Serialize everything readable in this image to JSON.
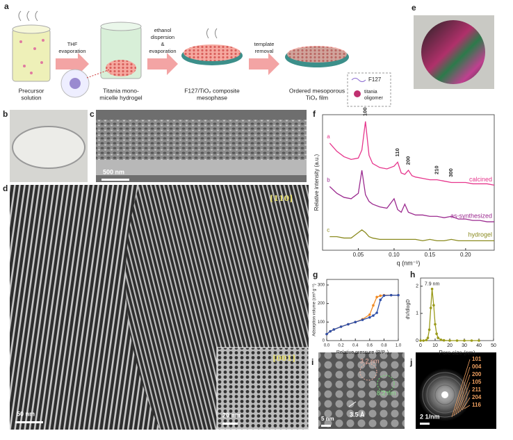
{
  "scheme": {
    "label": "a",
    "steps": [
      {
        "lines": [
          "Precursor",
          "solution"
        ]
      },
      {
        "lines": [
          "Titania mono-",
          "micelle hydrogel"
        ]
      },
      {
        "lines": [
          "F127/TiO₂ composite",
          "mesophase"
        ]
      },
      {
        "lines": [
          "Ordered mesoporous",
          "TiO₂ film"
        ]
      }
    ],
    "arrows": [
      {
        "lines": [
          "THF",
          "evaporation"
        ]
      },
      {
        "lines": [
          "ethanol",
          "dispersion",
          "&",
          "evaporation"
        ]
      },
      {
        "lines": [
          "template",
          "removal"
        ]
      }
    ],
    "legend": [
      "F127",
      "titania",
      "oligomer"
    ]
  },
  "panels": {
    "b": {
      "label": "b"
    },
    "c": {
      "label": "c",
      "scale": "500 nm"
    },
    "d": {
      "label": "d",
      "zone": "[110]",
      "scale": "50 nm",
      "inset_zone": "[001]",
      "inset_scale": "20 nm"
    },
    "e": {
      "label": "e"
    },
    "f": {
      "label": "f"
    },
    "g": {
      "label": "g"
    },
    "h": {
      "label": "h"
    },
    "i": {
      "label": "i",
      "annotations": [
        "3.2 nm",
        "8.2 nm",
        "3.5 Å"
      ],
      "scale": "5 nm"
    },
    "j": {
      "label": "j",
      "rings": [
        "101",
        "004",
        "200",
        "105",
        "211",
        "204",
        "116"
      ],
      "scale": "2 1/nm"
    }
  },
  "chart_data": [
    {
      "type": "line",
      "x_label": "q (nm⁻¹)",
      "y_label": "Relative intensity (a.u.)",
      "x": [
        0.01,
        0.02,
        0.03,
        0.04,
        0.05,
        0.055,
        0.06,
        0.065,
        0.07,
        0.08,
        0.09,
        0.1,
        0.105,
        0.11,
        0.115,
        0.12,
        0.125,
        0.13,
        0.14,
        0.15,
        0.16,
        0.17,
        0.18,
        0.19,
        0.2,
        0.21,
        0.22,
        0.23,
        0.24
      ],
      "series": [
        {
          "name": "calcined",
          "tag": "a",
          "color": "#e6358c",
          "values": [
            7.9,
            7.3,
            6.9,
            6.7,
            6.8,
            7.4,
            9.5,
            7.0,
            6.4,
            6.1,
            6.0,
            6.2,
            6.5,
            5.7,
            5.6,
            5.9,
            5.5,
            5.4,
            5.3,
            5.2,
            5.2,
            5.1,
            5.0,
            5.0,
            5.0,
            4.9,
            4.9,
            4.9,
            4.8
          ]
        },
        {
          "name": "as-synthesized",
          "tag": "b",
          "color": "#9b2a8f",
          "values": [
            4.7,
            4.2,
            3.9,
            3.8,
            4.2,
            5.9,
            4.1,
            3.6,
            3.4,
            3.2,
            3.1,
            3.8,
            3.0,
            2.8,
            3.4,
            2.8,
            2.7,
            2.6,
            2.6,
            2.5,
            2.5,
            2.4,
            2.5,
            2.3,
            2.3,
            2.2,
            2.2,
            2.1,
            2.1
          ]
        },
        {
          "name": "hydrogel",
          "tag": "c",
          "color": "#8a8a1e",
          "values": [
            1.0,
            1.0,
            0.9,
            0.9,
            1.3,
            1.5,
            1.3,
            1.0,
            0.9,
            0.8,
            0.8,
            0.8,
            0.8,
            0.8,
            0.8,
            0.8,
            0.8,
            0.8,
            0.7,
            0.8,
            0.7,
            0.7,
            0.8,
            0.7,
            0.7,
            0.7,
            0.7,
            0.7,
            0.7
          ]
        }
      ],
      "peaks": [
        {
          "label": "100",
          "q": 0.06
        },
        {
          "label": "110",
          "q": 0.105
        },
        {
          "label": "200",
          "q": 0.12
        },
        {
          "label": "210",
          "q": 0.16
        },
        {
          "label": "300",
          "q": 0.18
        }
      ],
      "xlim": [
        0,
        0.24
      ],
      "ylim": [
        0,
        10
      ],
      "xticks": [
        {
          "value": 0.05,
          "label": "0.05"
        },
        {
          "value": 0.1,
          "label": "0.10"
        },
        {
          "value": 0.15,
          "label": "0.15"
        },
        {
          "value": 0.2,
          "label": "0.20"
        }
      ]
    },
    {
      "type": "line",
      "markers": true,
      "x_label": "Relative pressure (P/P₀)",
      "y_label": "Adsorption volume (cm³ g⁻¹)",
      "x": [
        0,
        0.05,
        0.1,
        0.2,
        0.3,
        0.4,
        0.5,
        0.6,
        0.65,
        0.7,
        0.75,
        0.8,
        0.9,
        1.0
      ],
      "series": [
        {
          "color": "#f08a24",
          "values": [
            35,
            50,
            60,
            75,
            88,
            100,
            115,
            140,
            190,
            235,
            242,
            245,
            245,
            245
          ]
        },
        {
          "color": "#2f4fa8",
          "values": [
            35,
            50,
            60,
            75,
            88,
            100,
            112,
            125,
            135,
            150,
            220,
            243,
            245,
            245
          ]
        }
      ],
      "xlim": [
        0,
        1
      ],
      "ylim": [
        0,
        330
      ],
      "xticks": [
        {
          "value": 0,
          "label": "0.0"
        },
        {
          "value": 0.2,
          "label": "0.2"
        },
        {
          "value": 0.4,
          "label": "0.4"
        },
        {
          "value": 0.6,
          "label": "0.6"
        },
        {
          "value": 0.8,
          "label": "0.8"
        },
        {
          "value": 1,
          "label": "1.0"
        }
      ],
      "yticks": [
        0,
        100,
        200,
        300
      ]
    },
    {
      "type": "line",
      "markers": true,
      "x_label": "Pore size (nm)",
      "y_label": "dV/dlogD",
      "x": [
        0,
        2,
        4,
        5,
        6,
        7,
        7.9,
        9,
        10,
        11,
        12,
        14,
        16,
        20,
        25,
        30,
        35,
        40
      ],
      "series": [
        {
          "color": "#9a9a1a",
          "values": [
            0,
            0,
            0.02,
            0.1,
            0.4,
            1.2,
            1.9,
            1.3,
            0.6,
            0.25,
            0.1,
            0.03,
            0.01,
            0,
            0,
            0,
            0,
            0
          ]
        }
      ],
      "annotations": [
        {
          "text": "7.9 nm",
          "x": 7.9
        }
      ],
      "xlim": [
        0,
        50
      ],
      "ylim": [
        0,
        2.3
      ],
      "xticks": [
        0,
        10,
        20,
        30,
        40,
        50
      ],
      "yticks": [
        0,
        1,
        2
      ]
    }
  ]
}
